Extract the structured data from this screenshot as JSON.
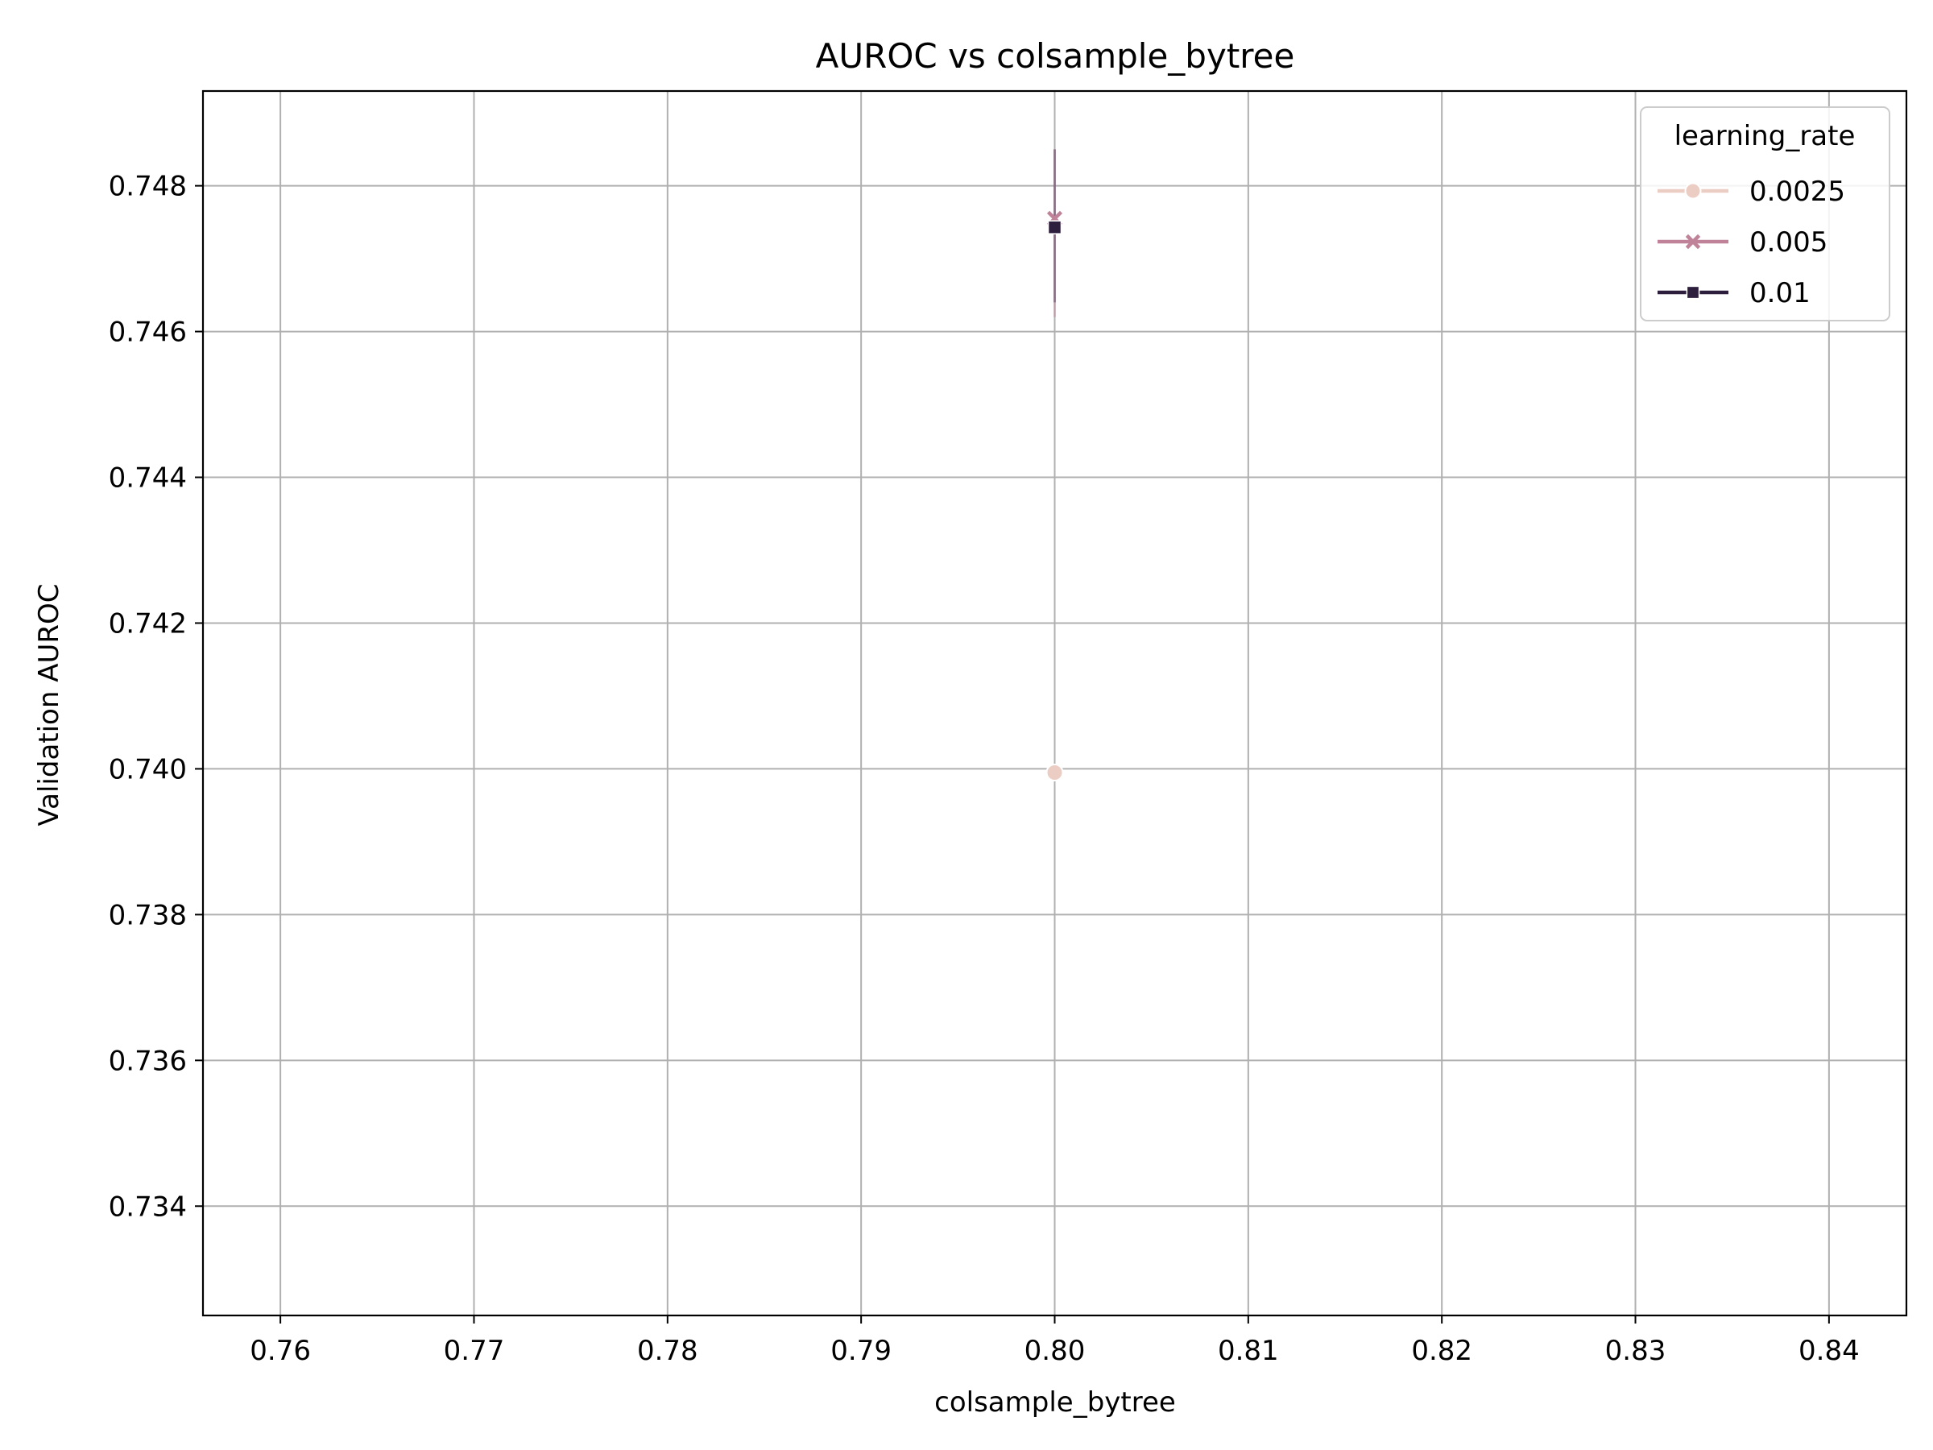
{
  "chart_data": {
    "type": "line",
    "title": "AUROC vs colsample_bytree",
    "xlabel": "colsample_bytree",
    "ylabel": "Validation AUROC",
    "xlim": [
      0.756,
      0.844
    ],
    "ylim": [
      0.7325,
      0.7493
    ],
    "xticks": [
      0.76,
      0.77,
      0.78,
      0.79,
      0.8,
      0.81,
      0.82,
      0.83,
      0.84
    ],
    "xtick_labels": [
      "0.76",
      "0.77",
      "0.78",
      "0.79",
      "0.80",
      "0.81",
      "0.82",
      "0.83",
      "0.84"
    ],
    "yticks": [
      0.734,
      0.736,
      0.738,
      0.74,
      0.742,
      0.744,
      0.746,
      0.748
    ],
    "ytick_labels": [
      "0.734",
      "0.736",
      "0.738",
      "0.740",
      "0.742",
      "0.744",
      "0.746",
      "0.748"
    ],
    "grid": true,
    "legend": {
      "title": "learning_rate",
      "placement": "top-right"
    },
    "series": [
      {
        "name": "0.0025",
        "color": "#ebcdc3",
        "marker": "circle",
        "x": [
          0.8
        ],
        "y": [
          0.73995
        ],
        "ci": null
      },
      {
        "name": "0.005",
        "color": "#c08298",
        "marker": "x",
        "x": [
          0.8
        ],
        "y": [
          0.74755
        ],
        "ci": [
          0.7462,
          0.7485
        ]
      },
      {
        "name": "0.01",
        "color": "#2d1e3e",
        "marker": "square",
        "x": [
          0.8
        ],
        "y": [
          0.74743
        ],
        "ci": [
          0.7464,
          0.7485
        ]
      }
    ]
  }
}
